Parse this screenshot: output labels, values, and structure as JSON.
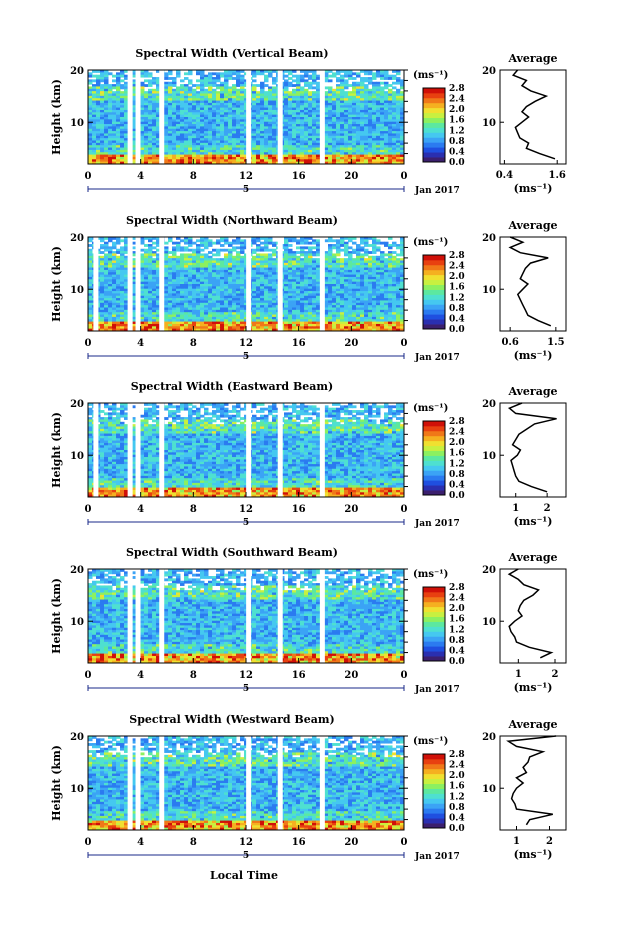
{
  "figure": {
    "date_label": "Jan 2017",
    "xlabel": "Local Time",
    "ylabel": "Height (km)",
    "unit_label": "(ms⁻¹)",
    "average_title": "Average",
    "average_xlabel": "(ms⁻¹)",
    "day_label": "5",
    "colormap": [
      "#3b1f6e",
      "#2a2fb0",
      "#1f4fe0",
      "#2b7bf0",
      "#3ba3f5",
      "#45c8f0",
      "#4ee0d0",
      "#5ce8a0",
      "#8cf060",
      "#c8f040",
      "#f0e030",
      "#f5b020",
      "#f07818",
      "#e84010",
      "#d01008"
    ]
  },
  "chart_data": [
    {
      "type": "heatmap",
      "title": "Spectral Width (Vertical Beam)",
      "x_ticks": [
        "0",
        "4",
        "8",
        "12",
        "16",
        "20",
        "0"
      ],
      "xlim": [
        0,
        24
      ],
      "y_ticks": [
        "20",
        "10"
      ],
      "ylim": [
        2,
        20
      ],
      "colorbar": {
        "ticks": [
          "2.8",
          "2.4",
          "2.0",
          "1.6",
          "1.2",
          "0.8",
          "0.4",
          "0.0"
        ],
        "range": [
          0,
          2.8
        ]
      },
      "gaps_hours": [
        3.2,
        3.8,
        5.6,
        12.2,
        14.6,
        17.8
      ],
      "average": {
        "x_ticks": [
          "0.4",
          "1.6"
        ],
        "xlim": [
          0.3,
          1.8
        ],
        "height": [
          3,
          4,
          5,
          6,
          7,
          8,
          9,
          10,
          11,
          12,
          13,
          14,
          15,
          16,
          17,
          18,
          19,
          20
        ],
        "values": [
          1.55,
          1.2,
          0.9,
          0.95,
          0.75,
          0.7,
          0.65,
          0.8,
          0.95,
          0.8,
          0.9,
          1.1,
          1.35,
          1.0,
          0.8,
          0.9,
          0.6,
          0.7
        ]
      }
    },
    {
      "type": "heatmap",
      "title": "Spectral Width (Northward Beam)",
      "x_ticks": [
        "0",
        "4",
        "8",
        "12",
        "16",
        "20",
        "0"
      ],
      "xlim": [
        0,
        24
      ],
      "y_ticks": [
        "20",
        "10"
      ],
      "ylim": [
        2,
        20
      ],
      "colorbar": {
        "ticks": [
          "2.8",
          "2.4",
          "2.0",
          "1.6",
          "1.2",
          "0.8",
          "0.4",
          "0.0"
        ],
        "range": [
          0,
          2.8
        ]
      },
      "gaps_hours": [
        0.6,
        3.2,
        3.8,
        5.6,
        12.2,
        14.6,
        17.8
      ],
      "average": {
        "x_ticks": [
          "0.6",
          "1.5"
        ],
        "xlim": [
          0.4,
          1.7
        ],
        "height": [
          3,
          4,
          5,
          6,
          7,
          8,
          9,
          10,
          11,
          12,
          13,
          14,
          15,
          16,
          17,
          18,
          19,
          20
        ],
        "values": [
          1.4,
          1.15,
          0.95,
          0.9,
          0.85,
          0.8,
          0.75,
          0.85,
          0.95,
          0.8,
          0.85,
          0.9,
          1.0,
          1.35,
          0.8,
          0.6,
          0.85,
          0.6
        ]
      }
    },
    {
      "type": "heatmap",
      "title": "Spectral Width (Eastward Beam)",
      "x_ticks": [
        "0",
        "4",
        "8",
        "12",
        "16",
        "20",
        "0"
      ],
      "xlim": [
        0,
        24
      ],
      "y_ticks": [
        "20",
        "10"
      ],
      "ylim": [
        2,
        20
      ],
      "colorbar": {
        "ticks": [
          "2.8",
          "2.4",
          "2.0",
          "1.6",
          "1.2",
          "0.8",
          "0.4",
          "0.0"
        ],
        "range": [
          0,
          2.8
        ]
      },
      "gaps_hours": [
        0.6,
        3.2,
        3.8,
        5.6,
        12.2,
        14.6,
        17.8
      ],
      "average": {
        "x_ticks": [
          "1",
          "2"
        ],
        "xlim": [
          0.5,
          2.6
        ],
        "height": [
          3,
          4,
          5,
          6,
          7,
          8,
          9,
          10,
          11,
          12,
          13,
          14,
          15,
          16,
          17,
          18,
          19,
          20
        ],
        "values": [
          2.0,
          1.5,
          1.1,
          1.0,
          0.95,
          0.9,
          0.85,
          1.05,
          1.15,
          0.9,
          1.0,
          1.1,
          1.35,
          1.6,
          2.3,
          1.0,
          0.8,
          1.2
        ]
      }
    },
    {
      "type": "heatmap",
      "title": "Spectral Width (Southward Beam)",
      "x_ticks": [
        "0",
        "4",
        "8",
        "12",
        "16",
        "20",
        "0"
      ],
      "xlim": [
        0,
        24
      ],
      "y_ticks": [
        "20",
        "10"
      ],
      "ylim": [
        2,
        20
      ],
      "colorbar": {
        "ticks": [
          "2.8",
          "2.4",
          "2.0",
          "1.6",
          "1.2",
          "0.8",
          "0.4",
          "0.0"
        ],
        "range": [
          0,
          2.8
        ]
      },
      "gaps_hours": [
        3.2,
        3.8,
        5.6,
        12.2,
        14.6,
        17.8
      ],
      "average": {
        "x_ticks": [
          "1",
          "2"
        ],
        "xlim": [
          0.5,
          2.3
        ],
        "height": [
          3,
          4,
          5,
          6,
          7,
          8,
          9,
          10,
          11,
          12,
          13,
          14,
          15,
          16,
          17,
          18,
          19,
          20
        ],
        "values": [
          1.6,
          1.9,
          1.3,
          0.95,
          0.9,
          0.8,
          0.75,
          0.9,
          1.1,
          1.0,
          1.05,
          1.15,
          1.4,
          1.55,
          1.15,
          1.0,
          0.75,
          1.0
        ]
      }
    },
    {
      "type": "heatmap",
      "title": "Spectral Width (Westward Beam)",
      "x_ticks": [
        "0",
        "4",
        "8",
        "12",
        "16",
        "20",
        "0"
      ],
      "xlim": [
        0,
        24
      ],
      "y_ticks": [
        "20",
        "10"
      ],
      "ylim": [
        2,
        20
      ],
      "colorbar": {
        "ticks": [
          "2.8",
          "2.4",
          "2.0",
          "1.6",
          "1.2",
          "0.8",
          "0.4",
          "0.0"
        ],
        "range": [
          0,
          2.8
        ]
      },
      "gaps_hours": [
        3.2,
        3.8,
        5.6,
        12.2,
        14.6,
        17.8
      ],
      "average": {
        "x_ticks": [
          "1",
          "2"
        ],
        "xlim": [
          0.5,
          2.5
        ],
        "height": [
          3,
          4,
          5,
          6,
          7,
          8,
          9,
          10,
          11,
          12,
          13,
          14,
          15,
          16,
          17,
          18,
          19,
          20
        ],
        "values": [
          1.3,
          1.4,
          2.1,
          1.0,
          0.95,
          0.85,
          0.9,
          1.0,
          1.2,
          1.0,
          1.3,
          1.2,
          1.35,
          1.4,
          1.8,
          1.0,
          0.75,
          2.2
        ]
      }
    }
  ]
}
